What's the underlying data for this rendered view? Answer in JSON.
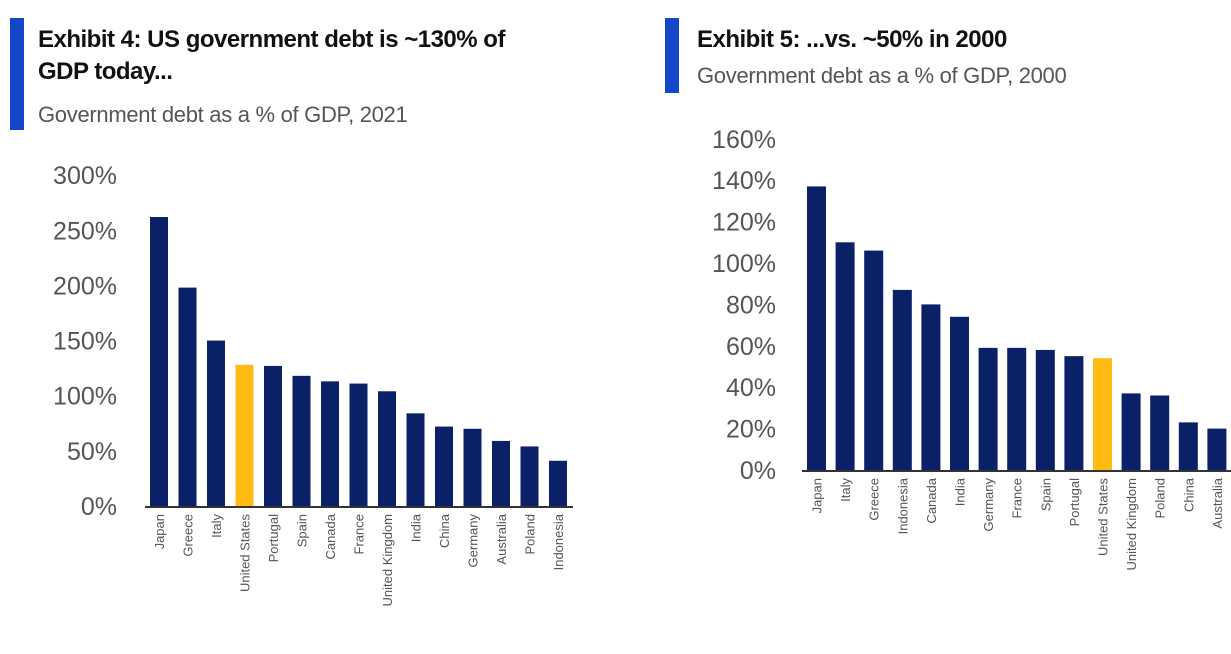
{
  "colors": {
    "accent": "#1447c8",
    "bar": "#0a2167",
    "highlight": "#ffbb14",
    "axis": "#333333"
  },
  "chart_data": [
    {
      "type": "bar",
      "title": "Exhibit 4: US government debt is ~130% of GDP today...",
      "title_lines": [
        "Exhibit 4: US government debt is ~130% of",
        "GDP today..."
      ],
      "subtitle": "Government debt as a % of GDP, 2021",
      "xlabel": "",
      "ylabel": "",
      "ylim": [
        0,
        300
      ],
      "yticks": [
        0,
        50,
        100,
        150,
        200,
        250,
        300
      ],
      "ytick_labels": [
        "0%",
        "50%",
        "100%",
        "150%",
        "200%",
        "250%",
        "300%"
      ],
      "grid": false,
      "legend": "none",
      "highlight_category": "United States",
      "categories": [
        "Japan",
        "Greece",
        "Italy",
        "United States",
        "Portugal",
        "Spain",
        "Canada",
        "France",
        "United Kingdom",
        "India",
        "China",
        "Germany",
        "Australia",
        "Poland",
        "Indonesia"
      ],
      "values": [
        262,
        198,
        150,
        128,
        127,
        118,
        113,
        111,
        104,
        84,
        72,
        70,
        59,
        54,
        41
      ]
    },
    {
      "type": "bar",
      "title": "Exhibit 5: ...vs. ~50% in 2000",
      "title_lines": [
        "Exhibit 5: ...vs. ~50% in 2000"
      ],
      "subtitle": "Government debt as a % of GDP, 2000",
      "xlabel": "",
      "ylabel": "",
      "ylim": [
        0,
        160
      ],
      "yticks": [
        0,
        20,
        40,
        60,
        80,
        100,
        120,
        140,
        160
      ],
      "ytick_labels": [
        "0%",
        "20%",
        "40%",
        "60%",
        "80%",
        "100%",
        "120%",
        "140%",
        "160%"
      ],
      "grid": false,
      "legend": "none",
      "highlight_category": "United States",
      "categories": [
        "Japan",
        "Italy",
        "Greece",
        "Indonesia",
        "Canada",
        "India",
        "Germany",
        "France",
        "Spain",
        "Portugal",
        "United States",
        "United Kingdom",
        "Poland",
        "China",
        "Australia"
      ],
      "values": [
        137,
        110,
        106,
        87,
        80,
        74,
        59,
        59,
        58,
        55,
        54,
        37,
        36,
        23,
        20
      ]
    }
  ]
}
